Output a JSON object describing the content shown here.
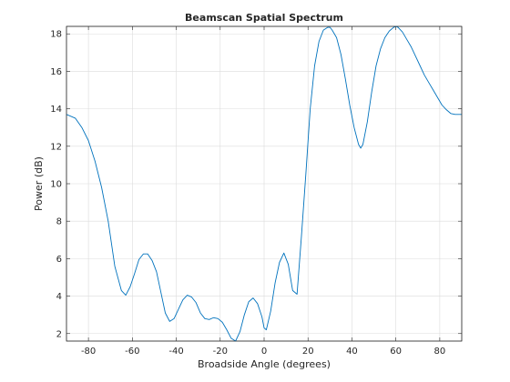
{
  "chart_data": {
    "type": "line",
    "title": "Beamscan Spatial Spectrum",
    "xlabel": "Broadside Angle (degrees)",
    "ylabel": "Power (dB)",
    "xlim": [
      -90,
      90
    ],
    "ylim": [
      1.6,
      18.4
    ],
    "xticks": [
      -80,
      -60,
      -40,
      -20,
      0,
      20,
      40,
      60,
      80
    ],
    "yticks": [
      2,
      4,
      6,
      8,
      10,
      12,
      14,
      16,
      18
    ],
    "grid": true,
    "line_color": "#0072bd",
    "series": [
      {
        "x": [
          -90,
          -86,
          -83,
          -80,
          -77,
          -74,
          -71,
          -68,
          -65,
          -63,
          -61,
          -59,
          -57,
          -55,
          -53,
          -51,
          -49,
          -47,
          -45,
          -43,
          -41,
          -39,
          -37,
          -35,
          -33,
          -31,
          -29,
          -27,
          -25,
          -23,
          -21,
          -19,
          -17,
          -15,
          -13,
          -11,
          -9,
          -7,
          -5,
          -3,
          -1,
          0,
          1,
          3,
          5,
          7,
          9,
          11,
          13,
          15,
          17,
          19,
          21,
          23,
          25,
          27,
          29,
          30,
          31,
          33,
          35,
          37,
          39,
          41,
          43,
          44,
          45,
          47,
          49,
          51,
          53,
          55,
          57,
          59,
          60,
          61,
          63,
          65,
          67,
          69,
          71,
          73,
          75,
          77,
          79,
          81,
          83,
          85,
          87,
          89,
          90
        ],
        "y": [
          13.7,
          13.5,
          13.0,
          12.3,
          11.2,
          9.8,
          8.0,
          5.6,
          4.3,
          4.05,
          4.5,
          5.2,
          5.95,
          6.25,
          6.25,
          5.9,
          5.3,
          4.2,
          3.1,
          2.65,
          2.8,
          3.3,
          3.8,
          4.05,
          3.95,
          3.65,
          3.1,
          2.8,
          2.75,
          2.85,
          2.8,
          2.6,
          2.2,
          1.75,
          1.6,
          2.1,
          3.0,
          3.7,
          3.9,
          3.6,
          2.9,
          2.3,
          2.2,
          3.2,
          4.7,
          5.8,
          6.3,
          5.7,
          4.3,
          4.1,
          7.2,
          10.5,
          14.0,
          16.3,
          17.6,
          18.2,
          18.35,
          18.35,
          18.2,
          17.8,
          16.9,
          15.6,
          14.2,
          13.0,
          12.1,
          11.9,
          12.1,
          13.3,
          14.9,
          16.3,
          17.2,
          17.8,
          18.15,
          18.35,
          18.4,
          18.35,
          18.1,
          17.7,
          17.3,
          16.8,
          16.3,
          15.8,
          15.4,
          15.0,
          14.6,
          14.2,
          13.95,
          13.75,
          13.7,
          13.7,
          13.7
        ]
      }
    ]
  }
}
